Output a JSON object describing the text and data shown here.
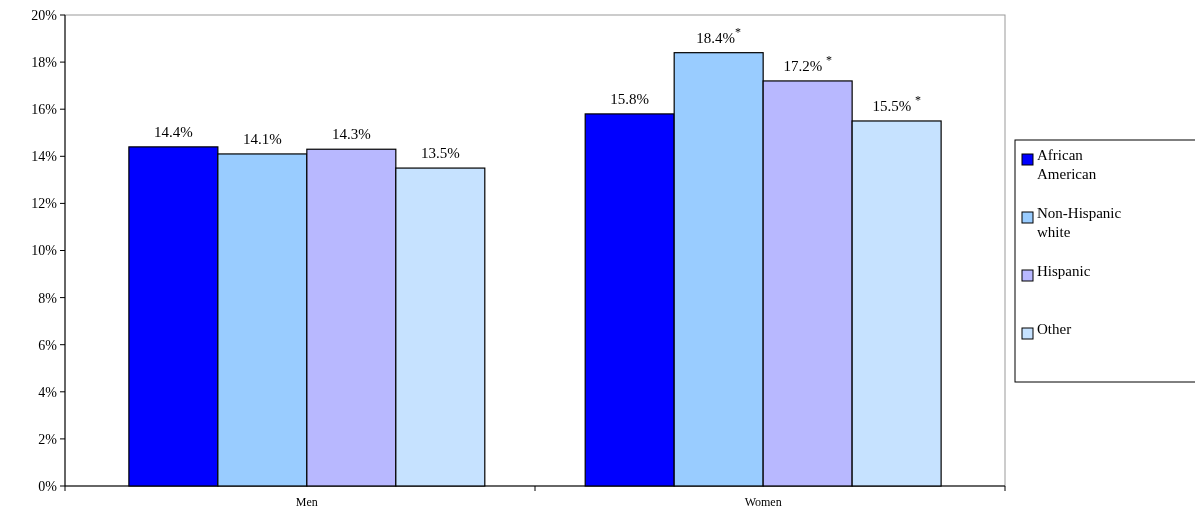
{
  "chart_data": {
    "type": "bar",
    "categories": [
      "Men",
      "Women"
    ],
    "series": [
      {
        "name": "African American",
        "color": "#0000ff",
        "values": [
          14.4,
          15.8
        ],
        "value_labels": [
          "14.4%",
          "15.8%"
        ]
      },
      {
        "name": "Non-Hispanic white",
        "color": "#99ccff",
        "values": [
          14.1,
          18.4
        ],
        "value_labels": [
          "14.1%",
          "18.4%$^{*}$"
        ]
      },
      {
        "name": "Hispanic",
        "color": "#b8b8ff",
        "values": [
          14.3,
          17.2
        ],
        "value_labels": [
          "14.3%",
          "17.2% $^{*}$"
        ]
      },
      {
        "name": "Other",
        "color": "#c6e2ff",
        "values": [
          13.5,
          15.5
        ],
        "value_labels": [
          "13.5%",
          "15.5% $^{*}$"
        ]
      }
    ],
    "ylim": [
      0,
      20
    ],
    "yticks": [
      {
        "value": 0,
        "label": "0%"
      },
      {
        "value": 2,
        "label": "2%"
      },
      {
        "value": 4,
        "label": "4%"
      },
      {
        "value": 6,
        "label": "6%"
      },
      {
        "value": 8,
        "label": "8%"
      },
      {
        "value": 10,
        "label": "10%"
      },
      {
        "value": 12,
        "label": "12%"
      },
      {
        "value": 14,
        "label": "14%"
      },
      {
        "value": 16,
        "label": "16%"
      },
      {
        "value": 18,
        "label": "18%"
      },
      {
        "value": 20,
        "label": "20%"
      }
    ],
    "grid": false,
    "legend": "right"
  }
}
